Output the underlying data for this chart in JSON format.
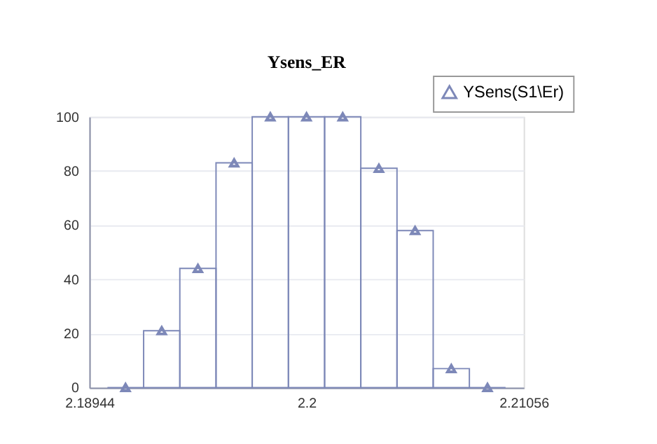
{
  "chart_data": {
    "type": "histogram",
    "title": "Ysens_ER",
    "bins": [
      2.19032,
      2.19208,
      2.19384,
      2.1956,
      2.19736,
      2.19912,
      2.20088,
      2.20264,
      2.2044,
      2.20616,
      2.20792,
      2.20968
    ],
    "series": [
      {
        "name": "YSens(S1\\Er)",
        "color": "#7d88b8",
        "values": [
          0,
          21,
          44,
          83,
          100,
          100,
          100,
          81,
          58,
          7,
          0
        ]
      },
      {
        "type": "scatter",
        "color": "#7d88b8",
        "x": [
          2.1912,
          2.19296,
          2.19472,
          2.19648,
          2.19824,
          2.2,
          2.20176,
          2.20352,
          2.20528,
          2.20704,
          2.2088
        ],
        "values": [
          0,
          21,
          44,
          83,
          100,
          100,
          100,
          81,
          58,
          7,
          0
        ]
      }
    ],
    "xlim": [
      2.18944,
      2.21056
    ],
    "xticks": [
      2.18944,
      2.2,
      2.21056
    ],
    "ylim": [
      0,
      100
    ],
    "yticks": [
      0,
      20,
      40,
      60,
      80,
      100
    ],
    "grid": "y",
    "legend": "top right",
    "marker": "triangle"
  }
}
